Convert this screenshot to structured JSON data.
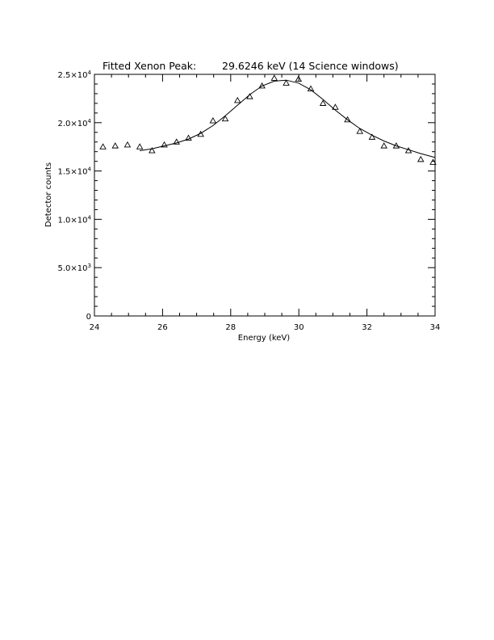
{
  "chart_data": {
    "type": "scatter",
    "title": "Fitted Xenon Peak:        29.6246 keV (14 Science windows)",
    "xlabel": "Energy (keV)",
    "ylabel": "Detector counts",
    "xlim": [
      24,
      34
    ],
    "ylim": [
      0,
      25000
    ],
    "x_ticks": [
      24,
      26,
      28,
      30,
      32,
      34
    ],
    "x_tick_labels": [
      "24",
      "26",
      "28",
      "30",
      "32",
      "34"
    ],
    "y_ticks": [
      0,
      5000,
      10000,
      15000,
      20000,
      25000
    ],
    "y_tick_labels": [
      {
        "base": "0",
        "exp": ""
      },
      {
        "base": "5.0×10",
        "exp": "3"
      },
      {
        "base": "1.0×10",
        "exp": "4"
      },
      {
        "base": "1.5×10",
        "exp": "4"
      },
      {
        "base": "2.0×10",
        "exp": "4"
      },
      {
        "base": "2.5×10",
        "exp": "4"
      }
    ],
    "grid": false,
    "series": [
      {
        "marker": "triangle",
        "x": [
          24.25,
          24.61,
          24.97,
          25.33,
          25.69,
          26.05,
          26.41,
          26.76,
          27.12,
          27.48,
          27.84,
          28.2,
          28.56,
          28.92,
          29.28,
          29.63,
          29.99,
          30.35,
          30.71,
          31.07,
          31.43,
          31.79,
          32.15,
          32.5,
          32.86,
          33.22,
          33.58,
          33.94
        ],
        "y": [
          17500,
          17600,
          17700,
          17500,
          17100,
          17700,
          18000,
          18400,
          18800,
          20200,
          20400,
          22300,
          22700,
          23800,
          24600,
          24100,
          24500,
          23500,
          22000,
          21600,
          20300,
          19100,
          18500,
          17600,
          17600,
          17100,
          16200,
          15900
        ]
      },
      {
        "style": "line",
        "x": [
          25.33,
          25.69,
          26.05,
          26.41,
          26.76,
          27.12,
          27.48,
          27.84,
          28.2,
          28.56,
          28.92,
          29.28,
          29.63,
          29.99,
          30.35,
          30.71,
          31.07,
          31.43,
          31.79,
          32.15,
          32.5,
          32.86,
          33.22,
          33.58,
          34.0
        ],
        "y": [
          17100,
          17300,
          17600,
          17900,
          18300,
          18900,
          19700,
          20700,
          21800,
          22900,
          23800,
          24300,
          24400,
          24100,
          23400,
          22400,
          21300,
          20300,
          19400,
          18700,
          18100,
          17600,
          17200,
          16800,
          16400
        ]
      }
    ]
  }
}
